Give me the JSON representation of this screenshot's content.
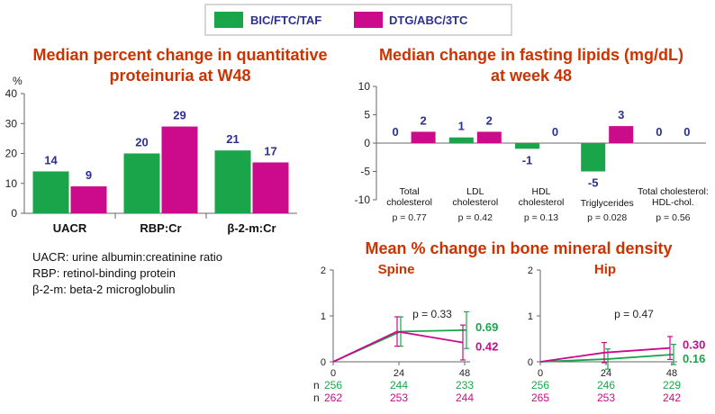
{
  "colors": {
    "green": "#1aa54a",
    "magenta": "#cc0a8c",
    "title": "#cc3300",
    "label": "#2d3091"
  },
  "legend": {
    "items": [
      {
        "name": "BIC/FTC/TAF",
        "color": "#1aa54a"
      },
      {
        "name": "DTG/ABC/3TC",
        "color": "#cc0a8c"
      }
    ]
  },
  "notes": [
    "UACR: urine albumin:creatinine ratio",
    "RBP: retinol-binding protein",
    "β-2-m: beta-2 microglobulin"
  ],
  "chart_data": [
    {
      "type": "bar",
      "title": "Median percent change in quantitative proteinuria at W48",
      "ylabel": "%",
      "ylim": [
        0,
        40
      ],
      "yticks": [
        0,
        10,
        20,
        30,
        40
      ],
      "categories": [
        "UACR",
        "RBP:Cr",
        "β-2-m:Cr"
      ],
      "series": [
        {
          "name": "BIC/FTC/TAF",
          "values": [
            14,
            20,
            21
          ]
        },
        {
          "name": "DTG/ABC/3TC",
          "values": [
            9,
            29,
            17
          ]
        }
      ]
    },
    {
      "type": "bar",
      "title": "Median change in fasting lipids (mg/dL) at week 48",
      "ylim": [
        -10,
        10
      ],
      "yticks": [
        -10,
        -5,
        0,
        5,
        10
      ],
      "categories": [
        "Total cholesterol",
        "LDL cholesterol",
        "HDL cholesterol",
        "Triglycerides",
        "Total cholesterol: HDL-chol."
      ],
      "pvalues": [
        "p = 0.77",
        "p = 0.42",
        "p = 0.13",
        "p = 0.028",
        "p = 0.56"
      ],
      "series": [
        {
          "name": "BIC/FTC/TAF",
          "values": [
            0,
            1,
            -1,
            -5,
            0
          ]
        },
        {
          "name": "DTG/ABC/3TC",
          "values": [
            2,
            2,
            0,
            3,
            0
          ]
        }
      ]
    },
    {
      "type": "line",
      "heading": "Mean % change in bone mineral density",
      "title": "Spine",
      "x": [
        0,
        24,
        48
      ],
      "ylim": [
        0,
        2
      ],
      "yticks": [
        0,
        1,
        2
      ],
      "pvalue": "p = 0.33",
      "series": [
        {
          "name": "BIC/FTC/TAF",
          "values": [
            0,
            0.66,
            0.69
          ],
          "err": [
            0,
            0.32,
            0.4
          ],
          "end_label": "0.69",
          "n": [
            256,
            244,
            233
          ]
        },
        {
          "name": "DTG/ABC/3TC",
          "values": [
            0,
            0.66,
            0.42
          ],
          "err": [
            0,
            0.32,
            0.38
          ],
          "end_label": "0.42",
          "n": [
            262,
            253,
            244
          ]
        }
      ],
      "n_label": "n"
    },
    {
      "type": "line",
      "title": "Hip",
      "x": [
        0,
        24,
        48
      ],
      "ylim": [
        0,
        2
      ],
      "yticks": [
        0,
        1,
        2
      ],
      "pvalue": "p = 0.47",
      "series": [
        {
          "name": "BIC/FTC/TAF",
          "values": [
            0,
            0.06,
            0.16
          ],
          "err": [
            0,
            0.22,
            0.22
          ],
          "end_label": "0.16",
          "n": [
            256,
            246,
            229
          ]
        },
        {
          "name": "DTG/ABC/3TC",
          "values": [
            0,
            0.2,
            0.3
          ],
          "err": [
            0,
            0.22,
            0.25
          ],
          "end_label": "0.30",
          "n": [
            265,
            253,
            242
          ]
        }
      ],
      "n_label": "n"
    }
  ]
}
